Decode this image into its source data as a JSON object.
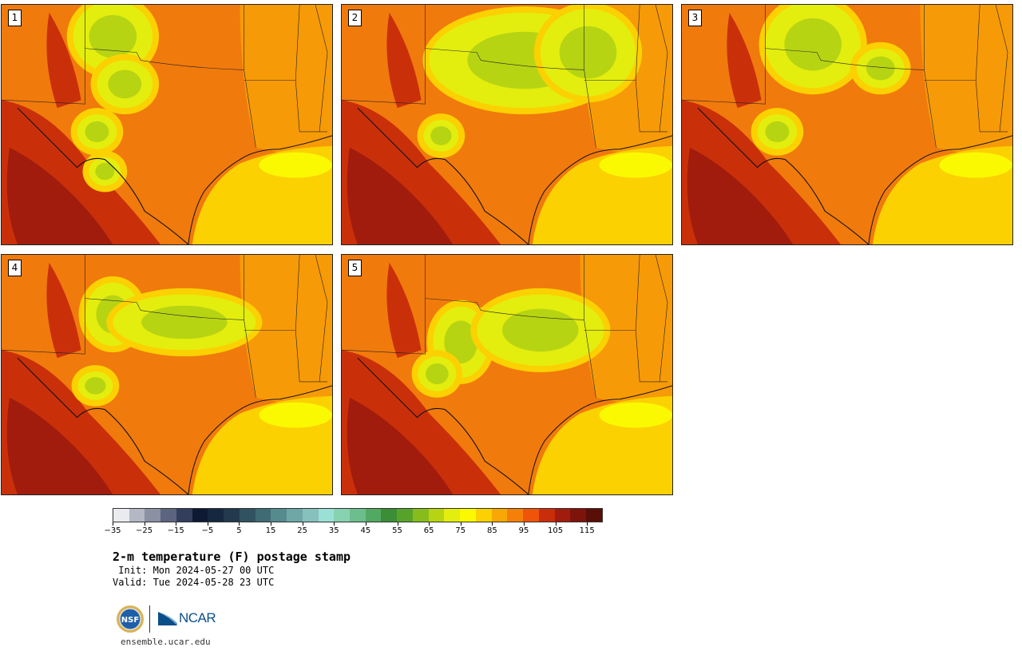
{
  "panels": [
    {
      "label": "1"
    },
    {
      "label": "2"
    },
    {
      "label": "3"
    },
    {
      "label": "4"
    },
    {
      "label": "5"
    }
  ],
  "colorbar": {
    "colors": [
      "#e9ebef",
      "#b4b8c4",
      "#8b90a2",
      "#5d6480",
      "#333d5c",
      "#0e1a33",
      "#15283f",
      "#22394e",
      "#315261",
      "#3f6b74",
      "#568b8e",
      "#6ea7a6",
      "#86c1bd",
      "#9be0d6",
      "#87d2b1",
      "#6cbf8c",
      "#52a962",
      "#3b8d36",
      "#57a32a",
      "#86bd1c",
      "#b7d413",
      "#e3ee0e",
      "#fbf902",
      "#fbd102",
      "#f9a704",
      "#f68007",
      "#ef5408",
      "#c92e0a",
      "#a11c0d",
      "#7e130c",
      "#5a0e08"
    ],
    "tick_labels": [
      "−35",
      "−25",
      "−15",
      "−5",
      "5",
      "15",
      "25",
      "35",
      "45",
      "55",
      "65",
      "75",
      "85",
      "95",
      "105",
      "115"
    ]
  },
  "title": "2-m temperature (F) postage stamp",
  "init": " Init: Mon 2024-05-27 00 UTC",
  "valid": "Valid: Tue 2024-05-28 23 UTC",
  "logos": {
    "nsf": "NSF",
    "ncar": "NCAR"
  },
  "url": "ensemble.ucar.edu"
}
